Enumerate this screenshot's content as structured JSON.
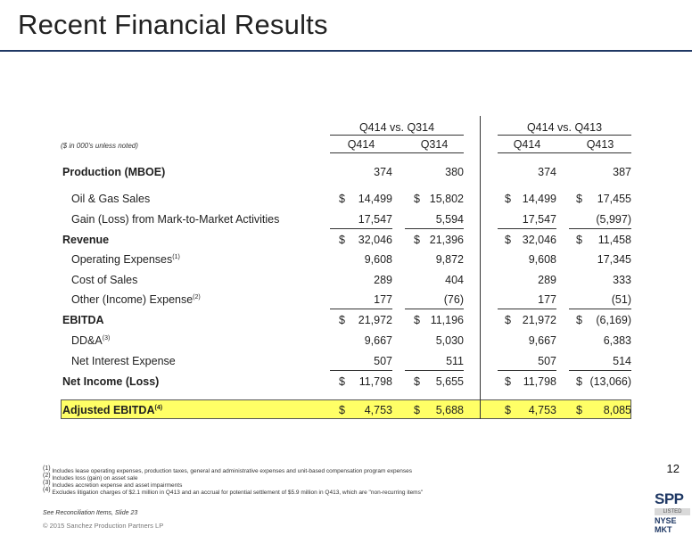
{
  "title": "Recent Financial Results",
  "table": {
    "group_headers": [
      "Q414 vs. Q314",
      "Q414 vs. Q413"
    ],
    "units_note": "($ in 000's unless noted)",
    "columns": [
      "Q414",
      "Q314",
      "Q414",
      "Q413"
    ],
    "rows": [
      {
        "label": "Production (MBOE)",
        "bold": true,
        "indent": false,
        "dollar": false,
        "values": [
          "374",
          "380",
          "374",
          "387"
        ],
        "underline": false
      },
      {
        "label": "Oil & Gas Sales",
        "bold": false,
        "indent": true,
        "dollar": true,
        "values": [
          "14,499",
          "15,802",
          "14,499",
          "17,455"
        ],
        "underline": false
      },
      {
        "label": "Gain (Loss) from Mark-to-Market Activities",
        "bold": false,
        "indent": true,
        "dollar": false,
        "values": [
          "17,547",
          "5,594",
          "17,547",
          "(5,997)"
        ],
        "underline": true
      },
      {
        "label": "Revenue",
        "bold": true,
        "indent": false,
        "dollar": true,
        "values": [
          "32,046",
          "21,396",
          "32,046",
          "11,458"
        ],
        "underline": false
      },
      {
        "label": "Operating Expenses",
        "sup": "(1)",
        "bold": false,
        "indent": true,
        "dollar": false,
        "values": [
          "9,608",
          "9,872",
          "9,608",
          "17,345"
        ],
        "underline": false
      },
      {
        "label": "Cost of Sales",
        "bold": false,
        "indent": true,
        "dollar": false,
        "values": [
          "289",
          "404",
          "289",
          "333"
        ],
        "underline": false
      },
      {
        "label": "Other (Income) Expense",
        "sup": "(2)",
        "bold": false,
        "indent": true,
        "dollar": false,
        "values": [
          "177",
          "(76)",
          "177",
          "(51)"
        ],
        "underline": true
      },
      {
        "label": "EBITDA",
        "bold": true,
        "indent": false,
        "dollar": true,
        "values": [
          "21,972",
          "11,196",
          "21,972",
          "(6,169)"
        ],
        "underline": false
      },
      {
        "label": "DD&A",
        "sup": "(3)",
        "bold": false,
        "indent": true,
        "dollar": false,
        "values": [
          "9,667",
          "5,030",
          "9,667",
          "6,383"
        ],
        "underline": false
      },
      {
        "label": "Net Interest Expense",
        "bold": false,
        "indent": true,
        "dollar": false,
        "values": [
          "507",
          "511",
          "507",
          "514"
        ],
        "underline": true
      },
      {
        "label": "Net Income (Loss)",
        "bold": true,
        "indent": false,
        "dollar": true,
        "values": [
          "11,798",
          "5,655",
          "11,798",
          "(13,066)"
        ],
        "underline": false
      },
      {
        "label": "Adjusted EBITDA",
        "sup": "(4)",
        "bold": true,
        "indent": false,
        "dollar": true,
        "values": [
          "4,753",
          "5,688",
          "4,753",
          "8,085"
        ],
        "underline": false,
        "highlight": true
      }
    ]
  },
  "footnotes": [
    {
      "mark": "(1)",
      "text": "Includes lease operating expenses, production taxes, general and administrative expenses and unit-based compensation program expenses"
    },
    {
      "mark": "(2)",
      "text": "Includes loss (gain) on asset sale"
    },
    {
      "mark": "(3)",
      "text": "Includes accretion expense and asset impairments"
    },
    {
      "mark": "(4)",
      "text": "Excludes litigation charges of $2.1 million in Q413 and an accrual for potential settlement of $5.9 million in Q413, which are \"non-recurring items\""
    }
  ],
  "page_number": "12",
  "see_reconciliation": "See Reconciliation Items, Slide 23",
  "copyright": "© 2015 Sanchez Production Partners LP",
  "logo": {
    "top": "SPP",
    "middle": "LISTED",
    "bottom": "NYSE MKT"
  },
  "dollar_sign": "$",
  "colors": {
    "accent": "#1f3864",
    "highlight": "#ffff66"
  }
}
